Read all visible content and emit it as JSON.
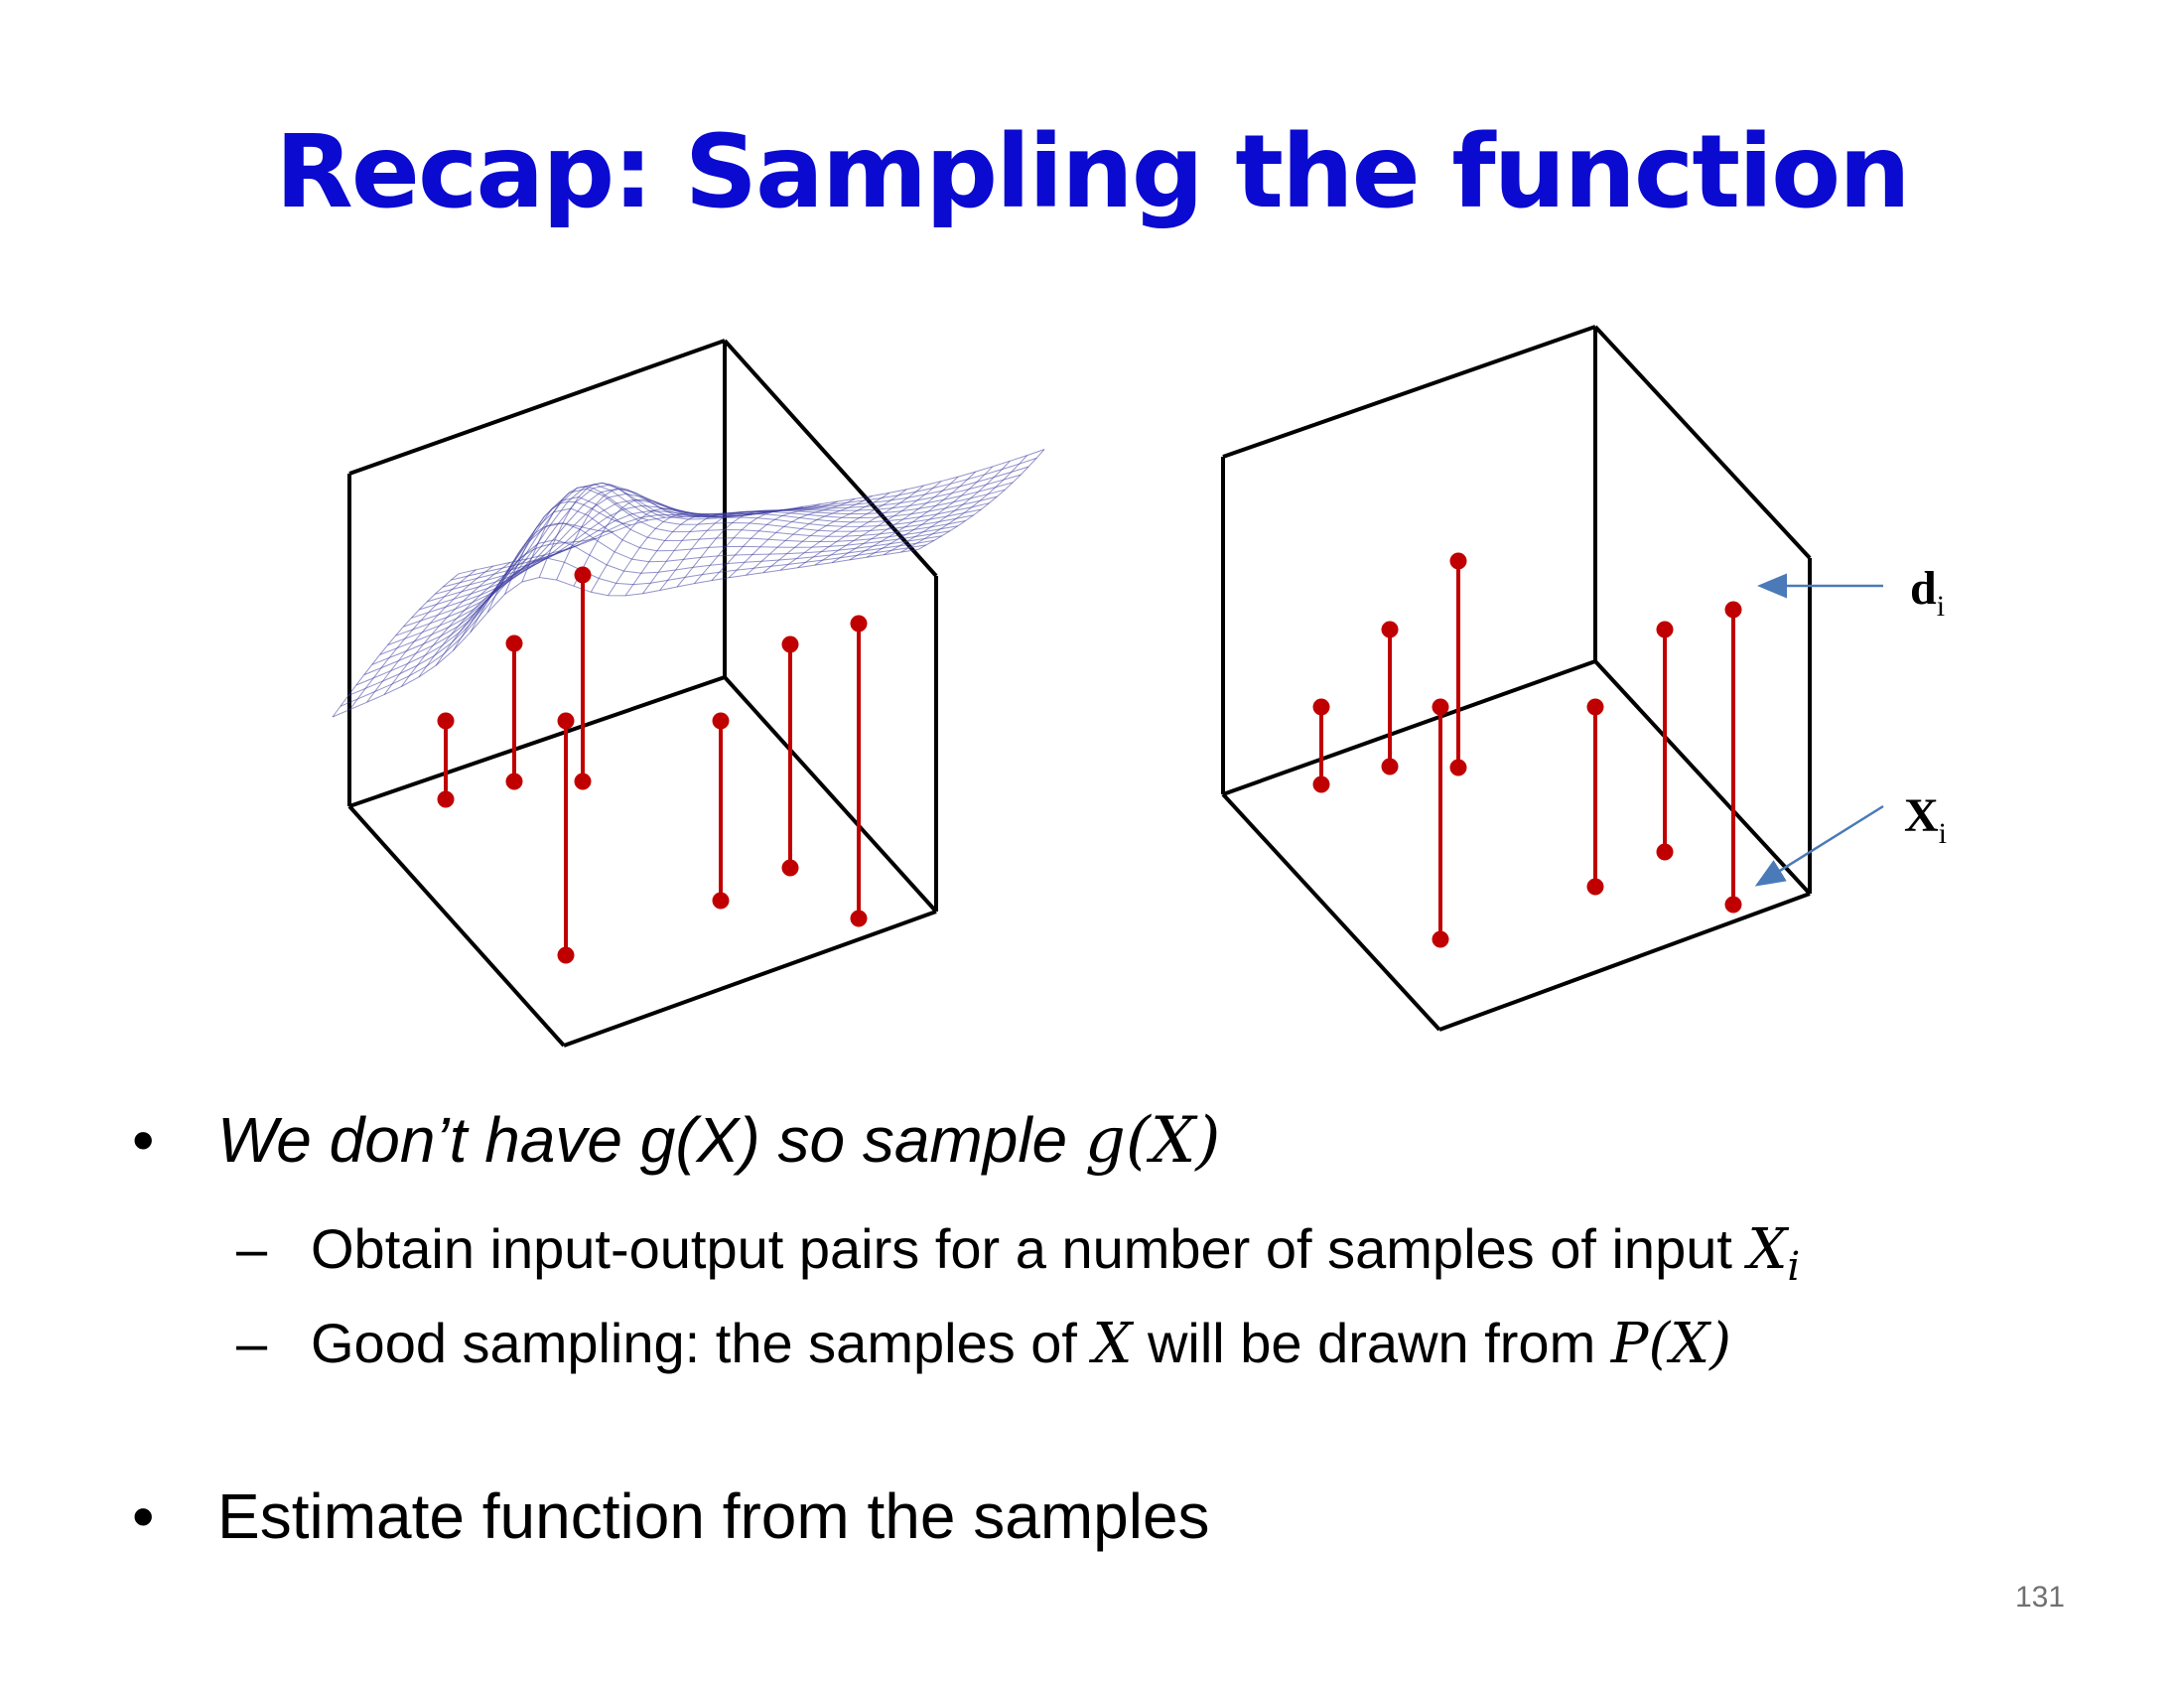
{
  "slide": {
    "title": "Recap: Sampling the function",
    "bullet1": {
      "text": "We don’t have g(X) so sample ",
      "math": "g(X)"
    },
    "sub1": {
      "text": "Obtain input-output pairs for a number of samples of input ",
      "math_base": "X",
      "math_sub": "i"
    },
    "sub2": {
      "text_a": "Good sampling: the samples of ",
      "math_a": "X",
      "text_b": " will be drawn from ",
      "math_b": "P(X)"
    },
    "bullet2": {
      "text": "Estimate function from the samples"
    },
    "bullet_symbol": "•",
    "dash_symbol": "–",
    "page_number": "131"
  },
  "figure": {
    "label_d": "d",
    "label_d_sub": "i",
    "label_x": "X",
    "label_x_sub": "i",
    "colors": {
      "box": "#000000",
      "stem": "#c00000",
      "surface": "#3a3aa0",
      "arrow": "#4a7ab8"
    }
  }
}
